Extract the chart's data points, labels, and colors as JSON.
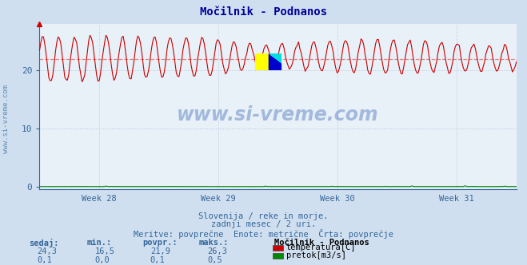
{
  "title": "Močilnik - Podnanos",
  "bg_color": "#d0dff0",
  "plot_bg_color": "#e8f0f8",
  "grid_color": "#b0c0d8",
  "temp_color": "#cc0000",
  "flow_color": "#008800",
  "avg_line_color": "#dd8888",
  "x_weeks": [
    "Week 28",
    "Week 29",
    "Week 30",
    "Week 31"
  ],
  "ylim": [
    -0.5,
    28
  ],
  "ytick_pos": [
    0,
    10,
    20
  ],
  "ytick_labels": [
    "0",
    "10",
    "20"
  ],
  "temp_avg": 21.9,
  "temp_min": 16.5,
  "temp_max": 26.3,
  "temp_current": 24.3,
  "flow_avg": 0.1,
  "flow_min": 0.0,
  "flow_max": 0.5,
  "flow_current": 0.1,
  "n_points": 360,
  "subtitle1": "Slovenija / reke in morje.",
  "subtitle2": "zadnji mesec / 2 uri.",
  "subtitle3": "Meritve: povprečne  Enote: metrične  Črta: povprečje",
  "label_sedaj": "sedaj:",
  "label_min": "min.:",
  "label_povpr": "povpr.:",
  "label_maks": "maks.:",
  "station_label": "Močilnik - Podnanos",
  "legend_temp": "temperatura[C]",
  "legend_flow": "pretok[m3/s]",
  "watermark": "www.si-vreme.com",
  "label_color": "#336699",
  "title_color": "#000099",
  "rotated_label": "www.si-vreme.com"
}
